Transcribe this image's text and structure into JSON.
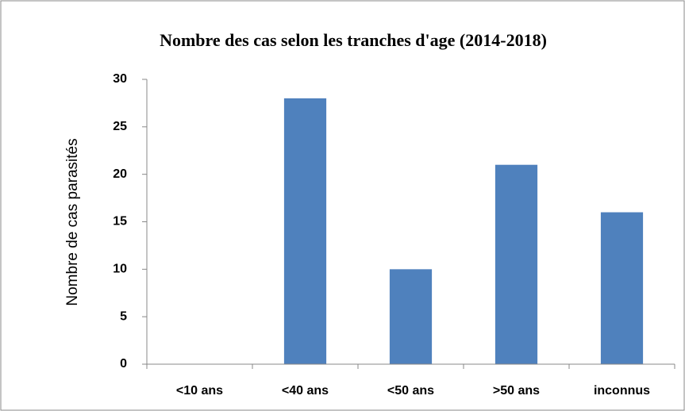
{
  "chart_data": {
    "type": "bar",
    "title": "Nombre des cas selon les tranches d'age (2014-2018)",
    "y_label": "Nombre de cas parasités",
    "categories": [
      "<10 ans",
      "<40 ans",
      "<50 ans",
      ">50 ans",
      "inconnus"
    ],
    "values": [
      0,
      28,
      10,
      21,
      16
    ],
    "color": "#4f81bd",
    "ylim": [
      0,
      30
    ],
    "yticks": [
      0,
      5,
      10,
      15,
      20,
      25,
      30
    ],
    "grid": false
  }
}
